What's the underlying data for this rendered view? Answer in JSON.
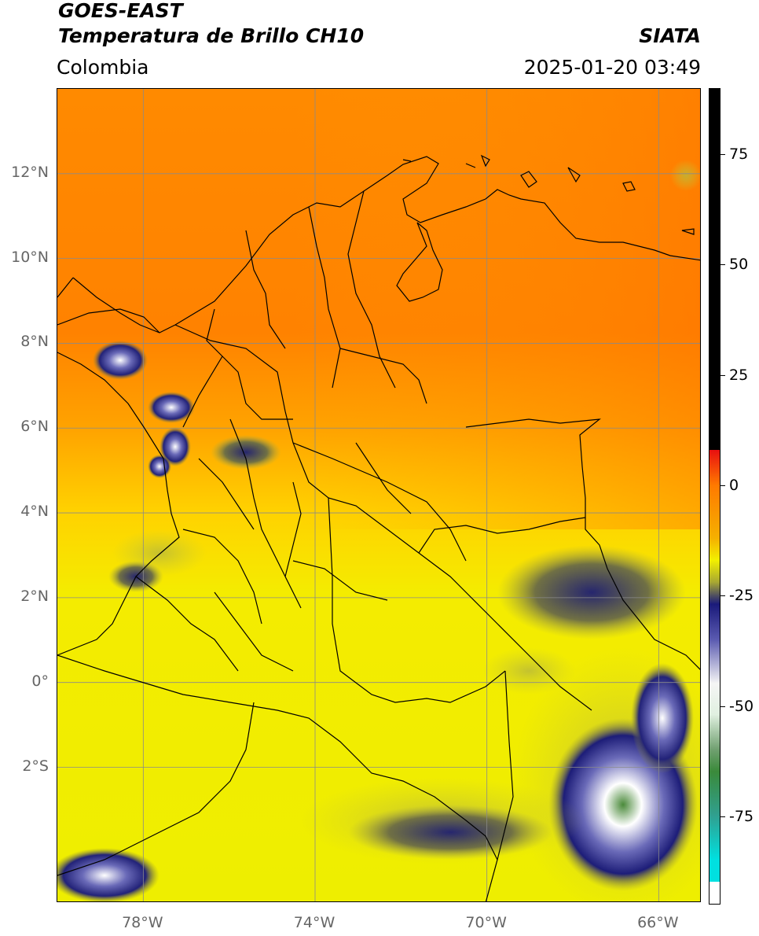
{
  "header": {
    "satellite": "GOES-EAST",
    "product": "Temperatura de Brillo CH10",
    "region": "Colombia",
    "agency": "SIATA",
    "datetime": "2025-01-20 03:49"
  },
  "map": {
    "lat_labels": [
      "12°N",
      "10°N",
      "8°N",
      "6°N",
      "4°N",
      "2°N",
      "0°",
      "2°S"
    ],
    "lon_labels": [
      "78°W",
      "74°W",
      "70°W",
      "66°W"
    ],
    "extent": {
      "lon_min": -80,
      "lon_max": -65,
      "lat_min": -5.2,
      "lat_max": 14
    }
  },
  "colorbar": {
    "unit": "",
    "tick_labels": [
      "75",
      "50",
      "25",
      "0",
      "-25",
      "-50",
      "-75"
    ],
    "range": [
      -95,
      90
    ],
    "colors": {
      "warm_black": "#000000",
      "red": "#e81010",
      "orange": "#ff7a00",
      "yellow": "#f2f000",
      "olive": "#a8a832",
      "navy": "#1a1a7a",
      "white": "#f5f5f5",
      "green": "#3a8a3a",
      "cyan": "#00e0e0"
    }
  }
}
